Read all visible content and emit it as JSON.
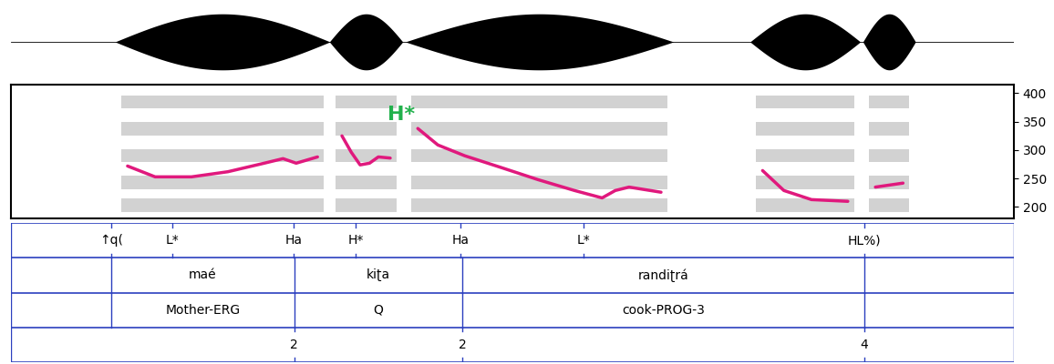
{
  "chart_data": {
    "type": "line",
    "xlim": [
      0,
      1.6
    ],
    "ylim": [
      180,
      415
    ],
    "yticks": [
      200,
      250,
      300,
      350,
      400
    ],
    "tick_labels": "y",
    "series": [
      {
        "color": "#e0197d",
        "x": [
          0.186,
          0.23,
          0.288,
          0.346,
          0.404,
          0.434,
          0.455,
          0.489,
          null,
          0.528,
          0.543,
          0.557,
          0.572,
          0.586,
          0.605,
          null,
          0.649,
          0.681,
          0.724,
          0.783,
          0.841,
          0.899,
          0.943,
          0.964,
          0.986,
          1.037,
          null,
          1.199,
          1.233,
          1.277,
          1.335,
          null,
          1.379,
          1.423
        ],
        "values": [
          272,
          253,
          253,
          262,
          277,
          285,
          277,
          288,
          null,
          325,
          296,
          274,
          277,
          288,
          286,
          null,
          338,
          309,
          290,
          269,
          248,
          229,
          216,
          229,
          235,
          226,
          null,
          264,
          229,
          213,
          210,
          null,
          235,
          242
        ]
      }
    ],
    "annotations": [
      {
        "text": "H*",
        "x": 0.623,
        "y": 362,
        "color": "#22b14c"
      }
    ],
    "tiers": {
      "color": "#2b3fbf",
      "tones": [
        {
          "x": 0.16,
          "label": "↑q("
        },
        {
          "x": 0.257,
          "label": "L*"
        },
        {
          "x": 0.451,
          "label": "Ha"
        },
        {
          "x": 0.55,
          "label": "H*"
        },
        {
          "x": 0.717,
          "label": "Ha"
        },
        {
          "x": 0.913,
          "label": "L*"
        },
        {
          "x": 1.361,
          "label": "HL%)"
        }
      ],
      "boundaries": [
        0.16,
        0.452,
        0.72,
        1.361
      ],
      "words": [
        "maé",
        "kiʈa",
        "randiʈrá"
      ],
      "glosses": [
        "Mother-ERG",
        "Q",
        "cook-PROG-3"
      ],
      "break_indices": [
        {
          "x": 0.452,
          "value": 2
        },
        {
          "x": 0.72,
          "value": 2
        },
        {
          "x": 1.361,
          "value": 4
        }
      ]
    }
  }
}
